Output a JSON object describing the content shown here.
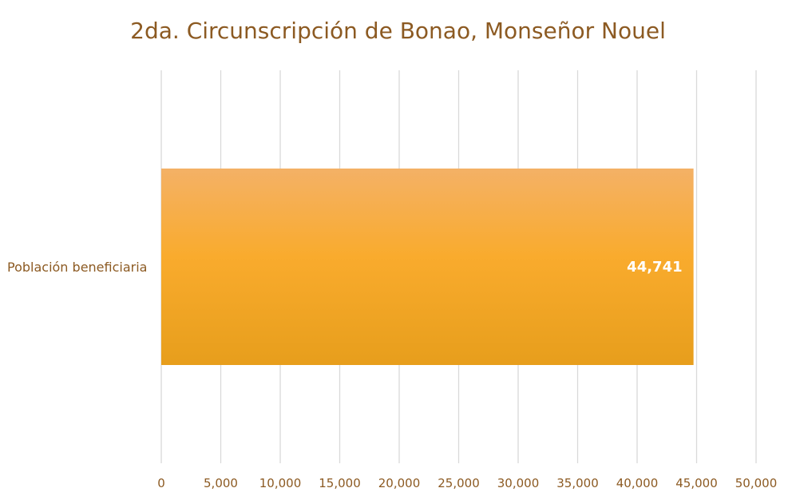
{
  "chart_data": {
    "type": "bar",
    "orientation": "horizontal",
    "title": "2da. Circunscripción de Bonao, Monseñor Nouel",
    "categories": [
      "Población beneficiaria"
    ],
    "values": [
      44741
    ],
    "data_labels": [
      "44,741"
    ],
    "xlim": [
      0,
      50000
    ],
    "x_ticks": [
      0,
      5000,
      10000,
      15000,
      20000,
      25000,
      30000,
      35000,
      40000,
      45000,
      50000
    ],
    "x_tick_labels": [
      "0",
      "5,000",
      "10,000",
      "15,000",
      "20,000",
      "25,000",
      "30,000",
      "35,000",
      "40,000",
      "45,000",
      "50,000"
    ],
    "grid": "vertical",
    "legend": "none",
    "colors": {
      "bar_top": "#f4b166",
      "bar_mid": "#f9ab2d",
      "bar_bottom": "#e79e1c",
      "text": "#8c5a22",
      "grid": "#d9d9d9"
    }
  }
}
